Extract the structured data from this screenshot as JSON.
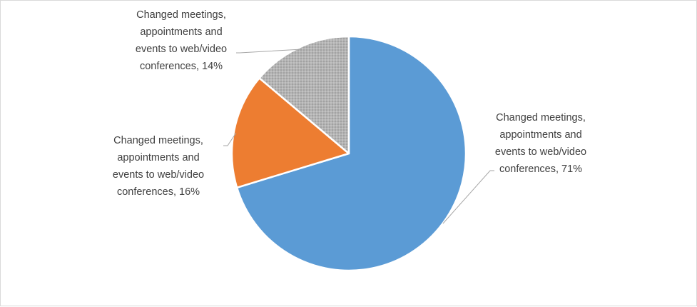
{
  "chart_data": {
    "type": "pie",
    "title": "",
    "start_angle_deg": 0,
    "direction": "clockwise",
    "legend": "none",
    "colors": {
      "text": "#404040",
      "leader": "#a6a6a6",
      "slice_edge": "#ffffff"
    },
    "slices": [
      {
        "label": "Changed meetings, appointments and events to web/video conferences, 71%",
        "label_lines": [
          "Changed meetings,",
          "appointments and",
          "events to web/video",
          "conferences, 71%"
        ],
        "value": 71,
        "color": "#5b9bd5",
        "pattern": "none"
      },
      {
        "label": "Changed meetings, appointments and events to web/video conferences, 16%",
        "label_lines": [
          "Changed meetings,",
          "appointments and",
          "events to web/video",
          "conferences, 16%"
        ],
        "value": 16,
        "color": "#ed7d31",
        "pattern": "none"
      },
      {
        "label": "Changed meetings, appointments and events to web/video conferences, 14%",
        "label_lines": [
          "Changed meetings,",
          "appointments and",
          "events to web/video",
          "conferences, 14%"
        ],
        "value": 14,
        "color": "#a5a5a5",
        "pattern": "dotted-texture"
      }
    ]
  }
}
